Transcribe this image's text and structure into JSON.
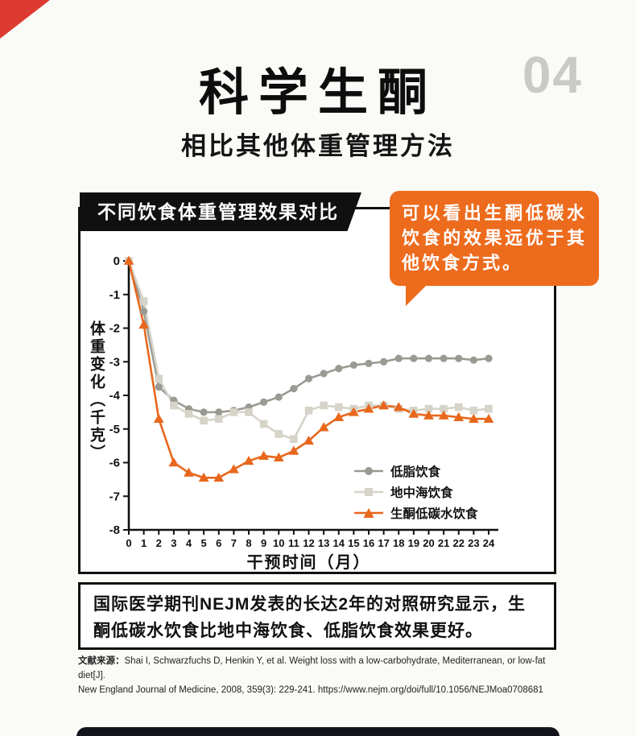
{
  "page": {
    "badge_number": "04",
    "title": "科学生酮",
    "subtitle": "相比其他体重管理方法"
  },
  "chart_header": {
    "label": "不同饮食体重管理效果对比"
  },
  "callout": {
    "text": "可以看出生酮低碳水饮食的效果远优于其他饮食方式。",
    "bg_color": "#ed6b1d"
  },
  "colors": {
    "corner_ribbon_red": "#dd3a31",
    "banner_black": "#101010",
    "badge_gray": "#c9c9c7",
    "accent_orange": "#ed6b1d"
  },
  "chart_data": {
    "type": "line",
    "title": "不同饮食体重管理效果对比",
    "xlabel": "干预时间（月）",
    "ylabel": "体重变化（千克）",
    "x": [
      0,
      1,
      2,
      3,
      4,
      5,
      6,
      7,
      8,
      9,
      10,
      11,
      12,
      13,
      14,
      15,
      16,
      17,
      18,
      19,
      20,
      21,
      22,
      23,
      24
    ],
    "xticks": [
      0,
      1,
      2,
      3,
      4,
      5,
      6,
      7,
      8,
      9,
      10,
      11,
      12,
      13,
      14,
      15,
      16,
      17,
      18,
      19,
      20,
      21,
      22,
      23,
      24
    ],
    "yticks": [
      0,
      -1,
      -2,
      -3,
      -4,
      -5,
      -6,
      -7,
      -8
    ],
    "xlim": [
      0,
      24
    ],
    "ylim": [
      -8,
      0
    ],
    "grid": false,
    "legend_position": "inside lower right",
    "series": [
      {
        "name": "低脂饮食",
        "marker": "circle",
        "color": "#9a9a93",
        "values": [
          0,
          -1.5,
          -3.75,
          -4.15,
          -4.4,
          -4.5,
          -4.5,
          -4.45,
          -4.35,
          -4.2,
          -4.05,
          -3.8,
          -3.5,
          -3.35,
          -3.2,
          -3.1,
          -3.05,
          -3,
          -2.9,
          -2.9,
          -2.9,
          -2.9,
          -2.9,
          -2.95,
          -2.9
        ]
      },
      {
        "name": "地中海饮食",
        "marker": "square",
        "color": "#d6d3c9",
        "values": [
          0,
          -1.2,
          -3.5,
          -4.3,
          -4.55,
          -4.75,
          -4.7,
          -4.5,
          -4.5,
          -4.85,
          -5.15,
          -5.3,
          -4.45,
          -4.3,
          -4.35,
          -4.4,
          -4.3,
          -4.3,
          -4.4,
          -4.45,
          -4.4,
          -4.4,
          -4.35,
          -4.45,
          -4.4
        ]
      },
      {
        "name": "生酮低碳水饮食",
        "marker": "triangle",
        "color": "#e8671c",
        "values": [
          0,
          -1.9,
          -4.7,
          -6,
          -6.3,
          -6.45,
          -6.45,
          -6.2,
          -5.95,
          -5.8,
          -5.85,
          -5.65,
          -5.35,
          -4.95,
          -4.65,
          -4.5,
          -4.4,
          -4.3,
          -4.35,
          -4.55,
          -4.6,
          -4.6,
          -4.65,
          -4.7,
          -4.7
        ]
      }
    ]
  },
  "summary_box": {
    "text": "国际医学期刊NEJM发表的长达2年的对照研究显示，生酮低碳水饮食比地中海饮食、低脂饮食效果更好。"
  },
  "citation": {
    "label": "文献来源：",
    "line1": "Shai I, Schwarzfuchs D, Henkin Y, et al. Weight loss with a low-carbohydrate, Mediterranean, or low-fat diet[J].",
    "line2": "New England Journal of Medicine, 2008, 359(3): 229-241. https://www.nejm.org/doi/full/10.1056/NEJMoa0708681"
  }
}
